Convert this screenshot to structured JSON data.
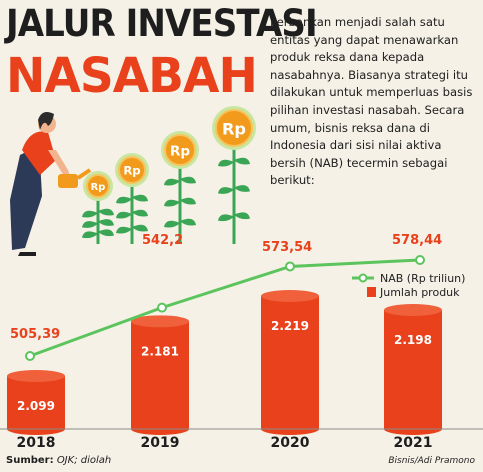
{
  "title_line1": "JALUR INVESTASI",
  "title_line2": "NASABAH",
  "intro": "Perbankan menjadi salah satu entitas yang dapat menawarkan produk reksa dana kepada nasabahnya. Biasanya strategi itu dilakukan untuk memperluas basis pilihan investasi nasabah. Secara umum, bisnis reksa dana di Indonesia dari sisi nilai aktiva bersih (NAB) tecermin sebagai berikut:",
  "coin_label": "Rp",
  "source_label": "Sumber:",
  "source_value": "OJK; diolah",
  "credit": "Bisnis/Adi Pramono",
  "colors": {
    "bar": "#e8411c",
    "line": "#5cc45c",
    "accent_text": "#e8411c",
    "coin": "#f29a1c"
  },
  "chart_data": {
    "type": "bar",
    "categories": [
      "2018",
      "2019",
      "2020",
      "2021"
    ],
    "series": [
      {
        "name": "Jumlah produk",
        "type": "bar",
        "values": [
          2099,
          2181,
          2219,
          2198
        ],
        "labels": [
          "2.099",
          "2.181",
          "2.219",
          "2.198"
        ],
        "color": "#e8411c"
      },
      {
        "name": "NAB (Rp triliun)",
        "type": "line",
        "values": [
          505.39,
          542.2,
          573.54,
          578.44
        ],
        "labels": [
          "505,39",
          "542,2",
          "573,54",
          "578,44"
        ],
        "color": "#5cc45c"
      }
    ],
    "legend": [
      "NAB (Rp triliun)",
      "Jumlah produk"
    ],
    "legend_position": "right"
  }
}
